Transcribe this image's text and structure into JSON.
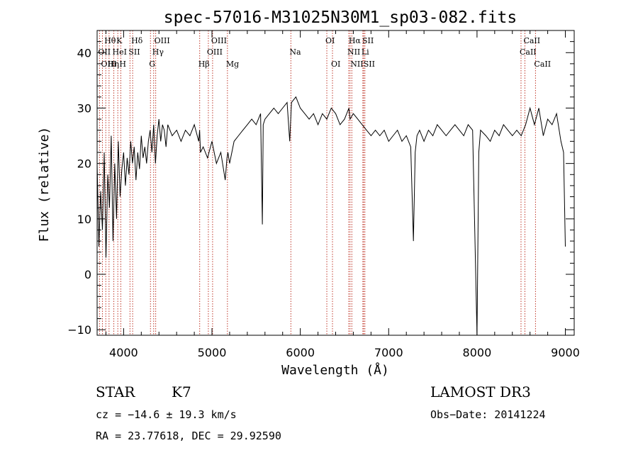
{
  "chart_data": {
    "type": "line",
    "title": "spec-57016-M31025N30M1_sp03-082.fits",
    "xlabel": "Wavelength (Å)",
    "ylabel": "Flux (relative)",
    "xlim": [
      3700,
      9100
    ],
    "ylim": [
      -11,
      44
    ],
    "x_ticks": [
      4000,
      5000,
      6000,
      7000,
      8000,
      9000
    ],
    "x_tick_labels": [
      "4000",
      "5000",
      "6000",
      "7000",
      "8000",
      "9000"
    ],
    "y_ticks": [
      -10,
      0,
      10,
      20,
      30,
      40
    ],
    "y_tick_labels": [
      "−10",
      "0",
      "10",
      "20",
      "30",
      "40"
    ],
    "grid": false,
    "series": [
      {
        "name": "flux",
        "x": [
          3700,
          3720,
          3740,
          3760,
          3780,
          3800,
          3820,
          3840,
          3860,
          3880,
          3900,
          3920,
          3940,
          3960,
          3980,
          4000,
          4020,
          4040,
          4060,
          4080,
          4100,
          4120,
          4140,
          4160,
          4180,
          4200,
          4220,
          4240,
          4260,
          4280,
          4300,
          4320,
          4340,
          4360,
          4380,
          4400,
          4420,
          4440,
          4460,
          4480,
          4500,
          4550,
          4600,
          4650,
          4700,
          4750,
          4800,
          4850,
          4860,
          4870,
          4900,
          4950,
          5000,
          5050,
          5100,
          5150,
          5170,
          5180,
          5200,
          5250,
          5300,
          5350,
          5400,
          5450,
          5500,
          5550,
          5570,
          5580,
          5600,
          5650,
          5700,
          5750,
          5800,
          5850,
          5880,
          5900,
          5950,
          6000,
          6050,
          6100,
          6150,
          6200,
          6250,
          6300,
          6350,
          6400,
          6450,
          6500,
          6550,
          6563,
          6600,
          6650,
          6700,
          6750,
          6800,
          6850,
          6900,
          6950,
          7000,
          7050,
          7100,
          7150,
          7200,
          7250,
          7280,
          7300,
          7320,
          7350,
          7400,
          7450,
          7500,
          7550,
          7600,
          7650,
          7700,
          7750,
          7800,
          7850,
          7900,
          7950,
          8000,
          8020,
          8040,
          8100,
          8150,
          8200,
          8250,
          8300,
          8350,
          8400,
          8450,
          8500,
          8550,
          8600,
          8650,
          8700,
          8750,
          8800,
          8850,
          8900,
          8950,
          8980,
          9000
        ],
        "y": [
          20,
          5,
          15,
          8,
          22,
          3,
          18,
          12,
          25,
          6,
          20,
          10,
          24,
          14,
          19,
          22,
          16,
          21,
          18,
          24,
          20,
          23,
          17,
          22,
          19,
          25,
          21,
          23,
          20,
          24,
          26,
          22,
          27,
          20,
          25,
          28,
          24,
          27,
          26,
          23,
          27,
          25,
          26,
          24,
          26,
          25,
          27,
          24,
          26,
          22,
          23,
          21,
          24,
          20,
          22,
          17,
          21,
          22,
          20,
          24,
          25,
          26,
          27,
          28,
          27,
          29,
          9,
          27,
          28,
          29,
          30,
          29,
          30,
          31,
          24,
          31,
          32,
          30,
          29,
          28,
          29,
          27,
          29,
          28,
          30,
          29,
          27,
          28,
          30,
          28,
          29,
          28,
          27,
          26,
          25,
          26,
          25,
          26,
          24,
          25,
          26,
          24,
          25,
          23,
          6,
          22,
          25,
          26,
          24,
          26,
          25,
          27,
          26,
          25,
          26,
          27,
          26,
          25,
          27,
          26,
          -11,
          22,
          26,
          25,
          24,
          26,
          25,
          27,
          26,
          25,
          26,
          25,
          27,
          30,
          27,
          30,
          25,
          28,
          27,
          29,
          24,
          22,
          5
        ]
      }
    ],
    "spectral_lines": [
      {
        "name": "Hθ",
        "wavelength": 3798,
        "row": 1
      },
      {
        "name": "OII",
        "wavelength": 3727,
        "row": 2
      },
      {
        "name": "OIII",
        "wavelength": 3760,
        "row": 3
      },
      {
        "name": "K",
        "wavelength": 3934,
        "row": 1
      },
      {
        "name": "HeI",
        "wavelength": 3889,
        "row": 2
      },
      {
        "name": "Hη",
        "wavelength": 3835,
        "row": 3
      },
      {
        "name": "SII",
        "wavelength": 4072,
        "row": 2
      },
      {
        "name": "H",
        "wavelength": 3968,
        "row": 3
      },
      {
        "name": "Hδ",
        "wavelength": 4102,
        "row": 1
      },
      {
        "name": "OIII",
        "wavelength": 4363,
        "row": 1
      },
      {
        "name": "Hγ",
        "wavelength": 4340,
        "row": 2
      },
      {
        "name": "G",
        "wavelength": 4304,
        "row": 3
      },
      {
        "name": "OIII",
        "wavelength": 5007,
        "row": 1
      },
      {
        "name": "OIII",
        "wavelength": 4959,
        "row": 2
      },
      {
        "name": "Hβ",
        "wavelength": 4861,
        "row": 3
      },
      {
        "name": "Mg",
        "wavelength": 5175,
        "row": 3
      },
      {
        "name": "Na",
        "wavelength": 5893,
        "row": 2
      },
      {
        "name": "OI",
        "wavelength": 6300,
        "row": 1
      },
      {
        "name": "OI",
        "wavelength": 6364,
        "row": 3
      },
      {
        "name": "Hα",
        "wavelength": 6563,
        "row": 1
      },
      {
        "name": "NII",
        "wavelength": 6548,
        "row": 2
      },
      {
        "name": "NII",
        "wavelength": 6583,
        "row": 3
      },
      {
        "name": "SII",
        "wavelength": 6717,
        "row": 1
      },
      {
        "name": "Li",
        "wavelength": 6708,
        "row": 2
      },
      {
        "name": "SII",
        "wavelength": 6731,
        "row": 3
      },
      {
        "name": "CaII",
        "wavelength": 8542,
        "row": 1
      },
      {
        "name": "CaII",
        "wavelength": 8498,
        "row": 2
      },
      {
        "name": "CaII",
        "wavelength": 8662,
        "row": 3
      }
    ],
    "line_color": "#c0392b"
  },
  "info": {
    "object_class": "STAR",
    "subclass": "K7",
    "survey": "LAMOST DR3",
    "cz": "cz = −14.6 ± 19.3 km/s",
    "obs_date": "Obs−Date: 20141224",
    "coords": "RA =  23.77618, DEC =  29.92590"
  }
}
